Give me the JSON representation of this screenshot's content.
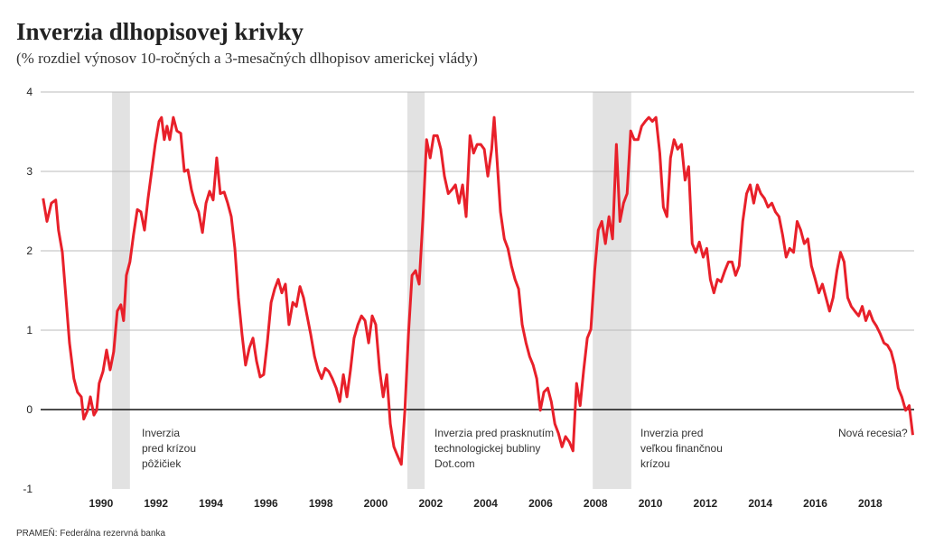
{
  "chart_data": {
    "type": "line",
    "title": "Inverzia dlhopisovej krivky",
    "subtitle": "(% rozdiel výnosov 10-ročných a 3-mesačných dlhopisov americkej vlády)",
    "source": "PRAMEŇ: Federálna rezervná banka",
    "color": "#e8202a",
    "recession_color": "#e2e2e2",
    "recessions": [
      [
        1990.4,
        1991.05
      ],
      [
        2001.15,
        2001.78
      ],
      [
        2007.9,
        2009.3
      ]
    ],
    "annotations": [
      {
        "lines": [
          "Inverzia",
          "pred krízou",
          "pôžičiek"
        ]
      },
      {
        "lines": [
          "Inverzia pred prasknutím",
          "technologickej bubliny",
          "Dot.com"
        ]
      },
      {
        "lines": [
          "Inverzia pred",
          "veľkou finančnou",
          "krízou"
        ]
      },
      {
        "lines": [
          "Nová recesia?"
        ]
      }
    ],
    "xlim": [
      1987.8,
      2019.6
    ],
    "ylim": [
      -1,
      4
    ],
    "xticks": [
      1990,
      1992,
      1994,
      1996,
      1998,
      2000,
      2002,
      2004,
      2006,
      2008,
      2010,
      2012,
      2014,
      2016,
      2018
    ],
    "yticks": [
      -1,
      0,
      1,
      2,
      3,
      4
    ],
    "grid": true,
    "x": [
      1987.89,
      1988.03,
      1988.19,
      1988.35,
      1988.45,
      1988.59,
      1988.72,
      1988.85,
      1989.01,
      1989.14,
      1989.28,
      1989.37,
      1989.51,
      1989.61,
      1989.74,
      1989.84,
      1989.93,
      1990.07,
      1990.2,
      1990.33,
      1990.46,
      1990.59,
      1990.72,
      1990.82,
      1990.92,
      1991.05,
      1991.18,
      1991.32,
      1991.45,
      1991.58,
      1991.71,
      1991.84,
      1991.97,
      1992.11,
      1992.2,
      1992.3,
      1992.4,
      1992.5,
      1992.63,
      1992.76,
      1992.9,
      1993.03,
      1993.16,
      1993.29,
      1993.42,
      1993.55,
      1993.69,
      1993.82,
      1993.95,
      1994.08,
      1994.21,
      1994.34,
      1994.48,
      1994.61,
      1994.74,
      1994.87,
      1995.0,
      1995.13,
      1995.26,
      1995.4,
      1995.53,
      1995.66,
      1995.79,
      1995.92,
      1996.05,
      1996.19,
      1996.32,
      1996.45,
      1996.58,
      1996.71,
      1996.84,
      1996.98,
      1997.11,
      1997.24,
      1997.37,
      1997.5,
      1997.63,
      1997.77,
      1997.9,
      1998.03,
      1998.16,
      1998.29,
      1998.42,
      1998.56,
      1998.69,
      1998.82,
      1998.95,
      1999.08,
      1999.21,
      1999.35,
      1999.48,
      1999.61,
      1999.74,
      1999.87,
      2000.0,
      2000.14,
      2000.27,
      2000.4,
      2000.53,
      2000.66,
      2000.79,
      2000.93,
      2001.06,
      2001.19,
      2001.32,
      2001.45,
      2001.58,
      2001.72,
      2001.85,
      2001.98,
      2002.11,
      2002.24,
      2002.37,
      2002.5,
      2002.64,
      2002.77,
      2002.9,
      2003.03,
      2003.16,
      2003.29,
      2003.43,
      2003.56,
      2003.69,
      2003.82,
      2003.95,
      2004.08,
      2004.22,
      2004.31,
      2004.41,
      2004.54,
      2004.68,
      2004.81,
      2004.94,
      2005.07,
      2005.2,
      2005.33,
      2005.47,
      2005.6,
      2005.73,
      2005.86,
      2005.99,
      2006.12,
      2006.26,
      2006.39,
      2006.52,
      2006.65,
      2006.78,
      2006.91,
      2007.05,
      2007.18,
      2007.31,
      2007.44,
      2007.57,
      2007.7,
      2007.83,
      2007.97,
      2008.1,
      2008.23,
      2008.36,
      2008.49,
      2008.62,
      2008.76,
      2008.89,
      2009.02,
      2009.15,
      2009.28,
      2009.41,
      2009.55,
      2009.68,
      2009.81,
      2009.94,
      2010.07,
      2010.2,
      2010.34,
      2010.47,
      2010.6,
      2010.73,
      2010.86,
      2010.99,
      2011.13,
      2011.26,
      2011.39,
      2011.52,
      2011.65,
      2011.78,
      2011.92,
      2012.05,
      2012.18,
      2012.31,
      2012.44,
      2012.57,
      2012.71,
      2012.84,
      2012.97,
      2013.1,
      2013.23,
      2013.36,
      2013.5,
      2013.63,
      2013.76,
      2013.89,
      2014.02,
      2014.15,
      2014.28,
      2014.42,
      2014.55,
      2014.68,
      2014.81,
      2014.94,
      2015.07,
      2015.21,
      2015.34,
      2015.47,
      2015.6,
      2015.73,
      2015.86,
      2016.0,
      2016.13,
      2016.26,
      2016.39,
      2016.52,
      2016.65,
      2016.79,
      2016.92,
      2017.05,
      2017.18,
      2017.31,
      2017.44,
      2017.58,
      2017.71,
      2017.84,
      2017.97,
      2018.1,
      2018.23,
      2018.37,
      2018.5,
      2018.63,
      2018.76,
      2018.89,
      2019.02,
      2019.15,
      2019.29,
      2019.42,
      2019.55
    ],
    "values": [
      2.66,
      2.37,
      2.6,
      2.64,
      2.26,
      1.98,
      1.41,
      0.84,
      0.39,
      0.22,
      0.16,
      -0.12,
      -0.01,
      0.16,
      -0.07,
      -0.01,
      0.33,
      0.48,
      0.75,
      0.5,
      0.73,
      1.24,
      1.32,
      1.12,
      1.69,
      1.86,
      2.2,
      2.52,
      2.49,
      2.26,
      2.66,
      3.0,
      3.34,
      3.63,
      3.68,
      3.4,
      3.57,
      3.4,
      3.68,
      3.51,
      3.48,
      3.0,
      3.02,
      2.77,
      2.6,
      2.49,
      2.23,
      2.6,
      2.75,
      2.64,
      3.17,
      2.72,
      2.74,
      2.6,
      2.43,
      2.03,
      1.41,
      0.95,
      0.56,
      0.78,
      0.9,
      0.61,
      0.41,
      0.44,
      0.84,
      1.35,
      1.52,
      1.64,
      1.47,
      1.58,
      1.07,
      1.35,
      1.3,
      1.55,
      1.41,
      1.18,
      0.95,
      0.67,
      0.5,
      0.39,
      0.52,
      0.48,
      0.39,
      0.27,
      0.1,
      0.44,
      0.16,
      0.5,
      0.9,
      1.07,
      1.18,
      1.12,
      0.84,
      1.18,
      1.07,
      0.5,
      0.16,
      0.44,
      -0.18,
      -0.47,
      -0.58,
      -0.69,
      -0.01,
      0.95,
      1.69,
      1.75,
      1.58,
      2.43,
      3.4,
      3.17,
      3.45,
      3.45,
      3.28,
      2.94,
      2.72,
      2.77,
      2.83,
      2.6,
      2.83,
      2.43,
      3.45,
      3.23,
      3.34,
      3.34,
      3.28,
      2.94,
      3.28,
      3.68,
      3.17,
      2.49,
      2.15,
      2.03,
      1.81,
      1.64,
      1.52,
      1.07,
      0.84,
      0.67,
      0.56,
      0.39,
      -0.01,
      0.22,
      0.27,
      0.1,
      -0.18,
      -0.3,
      -0.47,
      -0.34,
      -0.41,
      -0.52,
      0.33,
      0.05,
      0.5,
      0.9,
      1.01,
      1.75,
      2.26,
      2.37,
      2.09,
      2.43,
      2.15,
      3.34,
      2.37,
      2.6,
      2.72,
      3.51,
      3.4,
      3.4,
      3.57,
      3.63,
      3.68,
      3.63,
      3.68,
      3.23,
      2.55,
      2.43,
      3.17,
      3.4,
      3.28,
      3.34,
      2.89,
      3.06,
      2.09,
      1.98,
      2.11,
      1.92,
      2.03,
      1.64,
      1.47,
      1.64,
      1.61,
      1.75,
      1.86,
      1.86,
      1.69,
      1.81,
      2.37,
      2.72,
      2.83,
      2.6,
      2.83,
      2.72,
      2.66,
      2.55,
      2.6,
      2.49,
      2.43,
      2.2,
      1.92,
      2.03,
      1.98,
      2.37,
      2.26,
      2.09,
      2.15,
      1.81,
      1.64,
      1.47,
      1.58,
      1.41,
      1.24,
      1.41,
      1.75,
      1.98,
      1.86,
      1.41,
      1.3,
      1.24,
      1.18,
      1.3,
      1.12,
      1.24,
      1.12,
      1.05,
      0.95,
      0.84,
      0.81,
      0.73,
      0.56,
      0.27,
      0.16,
      -0.01,
      0.05,
      -0.32
    ]
  }
}
